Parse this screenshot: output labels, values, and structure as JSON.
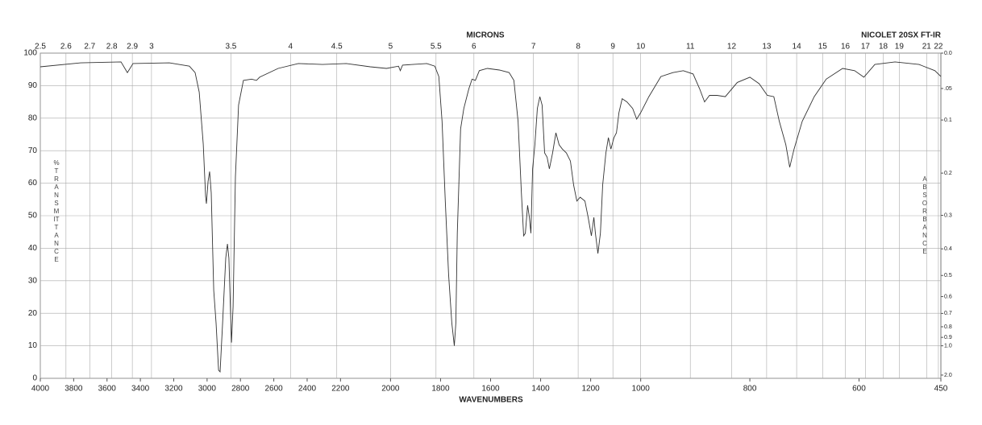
{
  "chart_data": {
    "type": "line",
    "title": "NICOLET 20SX FT-IR",
    "x_label": "WAVENUMBERS",
    "x2_label": "MICRONS",
    "y_label": "%TRANSMITTANCE",
    "y2_label": "ABSORBANCE",
    "color": "#333333",
    "xlim": [
      4000,
      450
    ],
    "x_breaks": [
      2200,
      1000
    ],
    "xticks": [
      4000,
      3800,
      3600,
      3400,
      3200,
      3000,
      2800,
      2600,
      2400,
      2200,
      2000,
      1800,
      1600,
      1400,
      1200,
      1000,
      800,
      600,
      450
    ],
    "x2ticks": [
      2.5,
      2.6,
      2.7,
      2.8,
      2.9,
      3,
      3.5,
      4,
      4.5,
      5,
      5.5,
      6,
      7,
      8,
      9,
      10,
      11,
      12,
      13,
      14,
      15,
      16,
      17,
      18,
      19,
      21,
      22
    ],
    "ylim": [
      0,
      100
    ],
    "yticks": [
      0,
      10,
      20,
      30,
      40,
      50,
      60,
      70,
      80,
      90,
      100
    ],
    "y2ticks": [
      {
        "value": 0,
        "label": "0.0"
      },
      {
        "value": 0.05,
        "label": ".05"
      },
      0.1,
      0.2,
      0.3,
      0.4,
      0.5,
      0.6,
      0.7,
      0.8,
      0.9,
      {
        "value": 1,
        "label": "1.0"
      },
      {
        "value": 2,
        "label": "2.0"
      }
    ],
    "grid": true,
    "x": [
      4000,
      3758,
      3516,
      3478,
      3444,
      3226,
      3106,
      3072,
      3047,
      3023,
      3009,
      3004,
      2994,
      2985,
      2975,
      2960,
      2946,
      2931,
      2922,
      2907,
      2888,
      2878,
      2869,
      2854,
      2844,
      2830,
      2811,
      2782,
      2733,
      2704,
      2685,
      2574,
      2453,
      2308,
      2177,
      2081,
      2016,
      1968,
      1961,
      1952,
      1855,
      1823,
      1807,
      1794,
      1781,
      1768,
      1755,
      1745,
      1739,
      1733,
      1720,
      1707,
      1687,
      1674,
      1661,
      1645,
      1613,
      1565,
      1526,
      1507,
      1490,
      1477,
      1468,
      1461,
      1452,
      1445,
      1439,
      1432,
      1423,
      1413,
      1403,
      1394,
      1384,
      1374,
      1365,
      1352,
      1339,
      1326,
      1313,
      1297,
      1281,
      1268,
      1255,
      1242,
      1223,
      1210,
      1197,
      1187,
      1181,
      1171,
      1161,
      1152,
      1139,
      1129,
      1119,
      1107,
      1097,
      1087,
      1074,
      1055,
      1032,
      1016,
      1000,
      985,
      963,
      941,
      922,
      904,
      892,
      883,
      874,
      860,
      845,
      823,
      800,
      783,
      768,
      756,
      746,
      734,
      727,
      719,
      704,
      682,
      660,
      630,
      608,
      591,
      571,
      534,
      490,
      461,
      450
    ],
    "values": [
      95.8,
      97,
      97.3,
      94,
      96.8,
      97,
      96,
      94,
      88,
      72,
      56,
      53.7,
      60.6,
      63.6,
      57,
      27,
      17,
      2.5,
      2,
      17,
      37,
      41.3,
      37,
      11,
      22,
      62,
      84,
      91.6,
      92,
      91.6,
      92.6,
      95.3,
      96.8,
      96.5,
      96.8,
      95.8,
      95.3,
      96,
      94.6,
      96.3,
      96.8,
      96,
      92.8,
      79,
      54.5,
      32,
      17,
      10,
      17,
      44.6,
      76.7,
      83,
      89,
      92,
      91.6,
      94.6,
      95.3,
      94.8,
      94,
      91.6,
      79,
      57,
      43.8,
      44.6,
      53.2,
      49.5,
      44.6,
      64.4,
      71.8,
      83,
      86.6,
      84,
      69.3,
      68,
      64.4,
      69.3,
      75.5,
      71.8,
      70.5,
      69.3,
      66.8,
      59.4,
      54.5,
      55.7,
      54.5,
      49.5,
      43.8,
      49.5,
      44.6,
      38.4,
      44.6,
      59.4,
      69.3,
      74,
      70.5,
      74,
      75.5,
      81.7,
      86,
      85,
      83,
      79.7,
      81.7,
      86.6,
      92.8,
      94,
      94.6,
      93.6,
      89,
      85,
      87,
      87,
      86.6,
      91,
      92.6,
      90.6,
      87,
      86.6,
      79,
      71.8,
      64.9,
      70.5,
      79,
      86.6,
      92,
      95.3,
      94.6,
      92.6,
      96.5,
      97.3,
      96.5,
      94.6,
      92.8
    ]
  }
}
